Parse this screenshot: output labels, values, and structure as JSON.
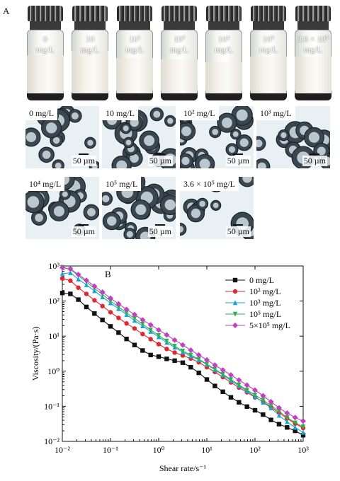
{
  "panel_a": {
    "letter": "A",
    "vials": [
      {
        "line1": "0",
        "line2": "mg/L"
      },
      {
        "line1": "10",
        "line2": "mg/L"
      },
      {
        "line1": "10²",
        "line2": "mg/L"
      },
      {
        "line1": "10³",
        "line2": "mg/L"
      },
      {
        "line1": "10⁴",
        "line2": "mg/L"
      },
      {
        "line1": "10⁵",
        "line2": "mg/L"
      },
      {
        "line1": "3.6 × 10⁵",
        "line2": "mg/L"
      }
    ],
    "micrographs": [
      {
        "label": "0 mg/L",
        "scale": "50 µm"
      },
      {
        "label": "10 mg/L",
        "scale": "50 µm"
      },
      {
        "label": "10² mg/L",
        "scale": "50 µm"
      },
      {
        "label": "10³ mg/L",
        "scale": "50 µm"
      },
      {
        "label": "10⁴ mg/L",
        "scale": "50 µm"
      },
      {
        "label": "10⁵ mg/L",
        "scale": "50 µm"
      },
      {
        "label": "3.6 × 10⁵ mg/L",
        "scale": "50 µm"
      }
    ]
  },
  "chart_data": {
    "type": "line",
    "title": "B",
    "xlabel": "Shear rate/s⁻¹",
    "ylabel": "Viscosity/(Pa·s)",
    "x_scale": "log",
    "y_scale": "log",
    "xlim": [
      0.01,
      1000
    ],
    "ylim": [
      0.01,
      1000
    ],
    "x_ticks": [
      "10⁻²",
      "10⁻¹",
      "10⁰",
      "10¹",
      "10²",
      "10³"
    ],
    "y_ticks": [
      "10⁻²",
      "10⁻¹",
      "10⁰",
      "10¹",
      "10²",
      "10³"
    ],
    "legend_position": "top-right",
    "grid": false,
    "series": [
      {
        "name": "0 mg/L",
        "color": "#111111",
        "marker": "square",
        "x": [
          0.01,
          0.0147,
          0.0215,
          0.0316,
          0.0464,
          0.0681,
          0.1,
          0.147,
          0.215,
          0.316,
          0.464,
          0.681,
          1,
          1.47,
          2.15,
          3.16,
          4.64,
          6.81,
          10,
          14.7,
          21.5,
          31.6,
          46.4,
          68.1,
          100,
          147,
          215,
          316,
          464,
          681,
          1000
        ],
        "y": [
          170,
          160,
          110,
          68,
          44,
          29,
          19,
          12.6,
          8.3,
          5.6,
          3.9,
          2.9,
          2.6,
          2.25,
          2.0,
          1.75,
          1.3,
          0.9,
          0.58,
          0.38,
          0.26,
          0.18,
          0.13,
          0.098,
          0.077,
          0.058,
          0.041,
          0.031,
          0.025,
          0.02,
          0.015
        ]
      },
      {
        "name": "10² mg/L",
        "color": "#e0282e",
        "marker": "circle",
        "x": [
          0.01,
          0.0147,
          0.0215,
          0.0316,
          0.0464,
          0.0681,
          0.1,
          0.147,
          0.215,
          0.316,
          0.464,
          0.681,
          1,
          1.47,
          2.15,
          3.16,
          4.64,
          6.81,
          10,
          14.7,
          21.5,
          31.6,
          46.4,
          68.1,
          100,
          147,
          215,
          316,
          464,
          681,
          1000
        ],
        "y": [
          440,
          380,
          240,
          160,
          105,
          72,
          48,
          33,
          23,
          16.5,
          11.5,
          8.2,
          5.9,
          4.3,
          3.4,
          2.8,
          2.3,
          1.8,
          1.3,
          0.95,
          0.68,
          0.48,
          0.34,
          0.25,
          0.18,
          0.135,
          0.095,
          0.065,
          0.045,
          0.032,
          0.024
        ]
      },
      {
        "name": "10³ mg/L",
        "color": "#1aa3d6",
        "marker": "triangle-up",
        "x": [
          0.01,
          0.0147,
          0.0215,
          0.0316,
          0.0464,
          0.0681,
          0.1,
          0.147,
          0.215,
          0.316,
          0.464,
          0.681,
          1,
          1.47,
          2.15,
          3.16,
          4.64,
          6.81,
          10,
          14.7,
          21.5,
          31.6,
          46.4,
          68.1,
          100,
          147,
          215,
          316,
          464,
          681,
          1000
        ],
        "y": [
          600,
          640,
          420,
          290,
          195,
          130,
          88,
          60,
          41,
          28,
          19.5,
          13.5,
          9.5,
          6.6,
          4.8,
          3.5,
          2.7,
          2.1,
          1.55,
          1.1,
          0.78,
          0.54,
          0.38,
          0.27,
          0.19,
          0.13,
          0.09,
          0.055,
          0.036,
          0.025,
          0.018
        ]
      },
      {
        "name": "10⁵ mg/L",
        "color": "#2fb14a",
        "marker": "triangle-down",
        "x": [
          0.01,
          0.0147,
          0.0215,
          0.0316,
          0.0464,
          0.0681,
          0.1,
          0.147,
          0.215,
          0.316,
          0.464,
          0.681,
          1,
          1.47,
          2.15,
          3.16,
          4.64,
          6.81,
          10,
          14.7,
          21.5,
          31.6,
          46.4,
          68.1,
          100,
          147,
          215,
          316,
          464,
          681,
          1000
        ],
        "y": [
          920,
          800,
          530,
          350,
          230,
          155,
          100,
          68,
          46,
          32,
          22,
          15,
          10.5,
          7.3,
          5.2,
          3.8,
          2.9,
          2.2,
          1.6,
          1.15,
          0.82,
          0.58,
          0.41,
          0.29,
          0.21,
          0.15,
          0.105,
          0.072,
          0.048,
          0.034,
          0.026
        ]
      },
      {
        "name": "5×10⁵ mg/L",
        "color": "#c23fbf",
        "marker": "diamond",
        "x": [
          0.01,
          0.0147,
          0.0215,
          0.0316,
          0.0464,
          0.0681,
          0.1,
          0.147,
          0.215,
          0.316,
          0.464,
          0.681,
          1,
          1.47,
          2.15,
          3.16,
          4.64,
          6.81,
          10,
          14.7,
          21.5,
          31.6,
          46.4,
          68.1,
          100,
          147,
          215,
          316,
          464,
          681,
          1000
        ],
        "y": [
          900,
          820,
          570,
          390,
          265,
          180,
          120,
          83,
          58,
          41,
          29,
          21,
          15,
          10.8,
          7.7,
          5.6,
          4.0,
          2.9,
          2.1,
          1.5,
          1.08,
          0.78,
          0.56,
          0.4,
          0.29,
          0.2,
          0.135,
          0.09,
          0.064,
          0.048,
          0.038
        ]
      }
    ]
  }
}
